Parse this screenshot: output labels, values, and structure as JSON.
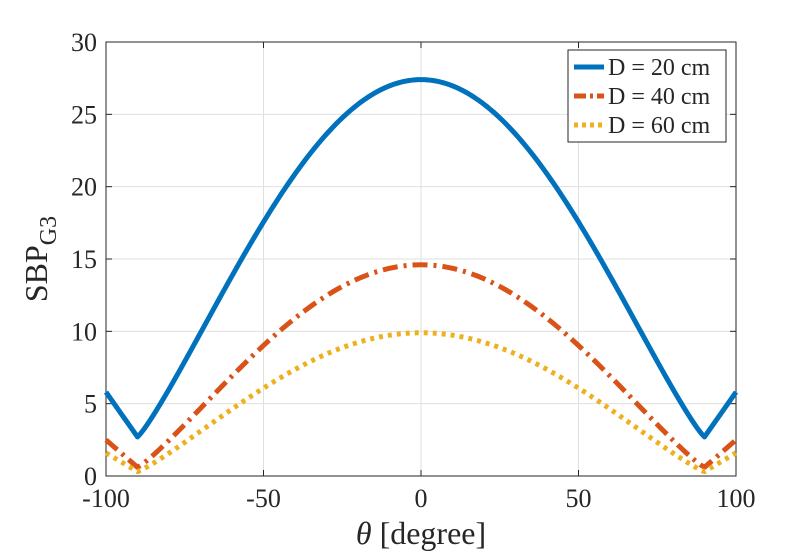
{
  "chart_data": {
    "type": "line",
    "title": "",
    "xlabel": {
      "symbol": "θ",
      "rest": " [degree]"
    },
    "ylabel": {
      "main": "SBP",
      "subscript": "G3"
    },
    "xlim": [
      -100,
      100
    ],
    "ylim": [
      0,
      30
    ],
    "xticks": [
      -100,
      -50,
      0,
      50,
      100
    ],
    "yticks": [
      0,
      5,
      10,
      15,
      20,
      25,
      30
    ],
    "grid": true,
    "legend_position": "top-right",
    "series": [
      {
        "name": "D = 20 cm",
        "color": "#0072BD",
        "style": "solid",
        "peak": 27.4,
        "min_at_90": 2.7,
        "value_at_edge": 5.8
      },
      {
        "name": "D = 40 cm",
        "color": "#D95319",
        "style": "dashdot",
        "peak": 14.6,
        "min_at_90": 0.6,
        "value_at_edge": 2.5
      },
      {
        "name": "D = 60 cm",
        "color": "#EDB120",
        "style": "dotted",
        "peak": 9.9,
        "min_at_90": 0.3,
        "value_at_edge": 1.6
      }
    ]
  }
}
